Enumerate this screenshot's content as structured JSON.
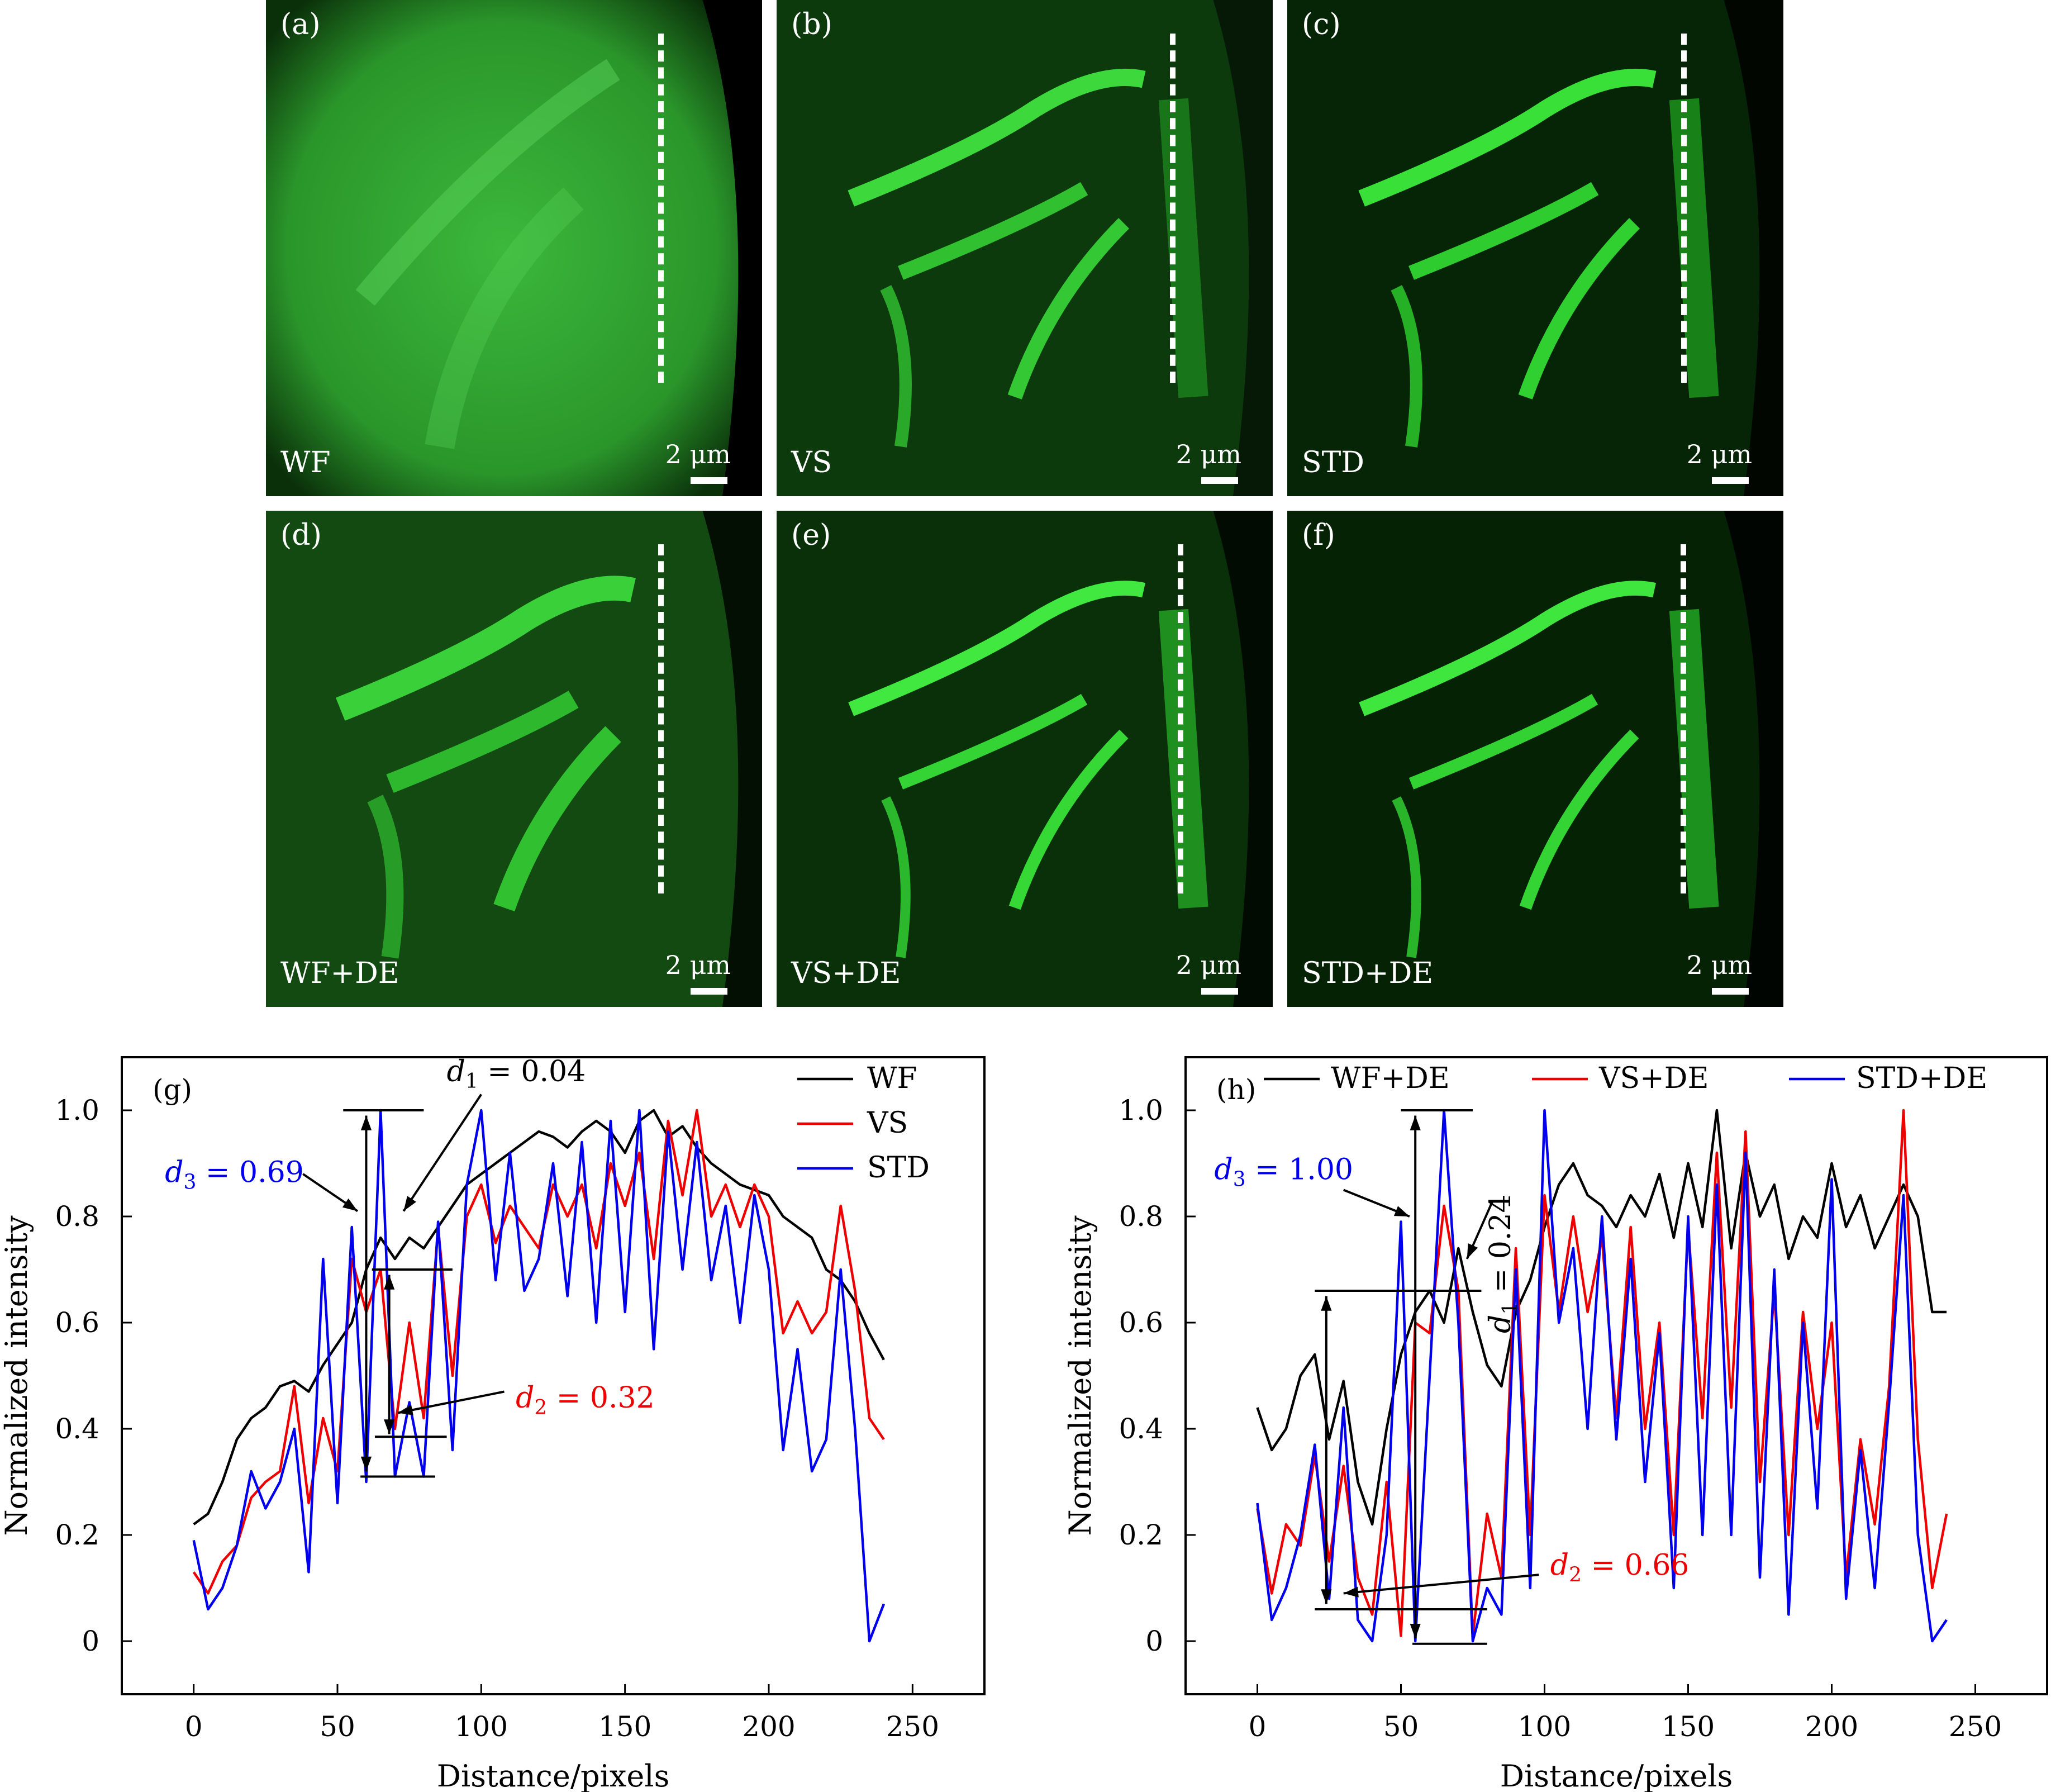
{
  "panels": [
    {
      "letter": "(a)",
      "method": "WF",
      "scale": "2 μm"
    },
    {
      "letter": "(b)",
      "method": "VS",
      "scale": "2 μm"
    },
    {
      "letter": "(c)",
      "method": "STD",
      "scale": "2 μm"
    },
    {
      "letter": "(d)",
      "method": "WF+DE",
      "scale": "2 μm"
    },
    {
      "letter": "(e)",
      "method": "VS+DE",
      "scale": "2 μm"
    },
    {
      "letter": "(f)",
      "method": "STD+DE",
      "scale": "2 μm"
    }
  ],
  "colors": {
    "wf": "#000000",
    "vs": "#ee0000",
    "std": "#0000ee",
    "green": "#22d022"
  },
  "chart_data": [
    {
      "type": "line",
      "panel": "(g)",
      "xlabel": "Distance/pixels",
      "ylabel": "Normalized intensity",
      "xlim": [
        -25,
        275
      ],
      "ylim": [
        -0.1,
        1.1
      ],
      "xticks": [
        0,
        50,
        100,
        150,
        200,
        250
      ],
      "yticks": [
        0,
        0.2,
        0.4,
        0.6,
        0.8,
        1.0
      ],
      "ytick_labels": [
        "0",
        "0.2",
        "0.4",
        "0.6",
        "0.8",
        "1.0"
      ],
      "legend_position": "top-right",
      "series": [
        {
          "name": "WF",
          "color": "#000000",
          "x": [
            0,
            5,
            10,
            15,
            20,
            25,
            30,
            35,
            40,
            45,
            50,
            55,
            60,
            65,
            70,
            75,
            80,
            85,
            90,
            95,
            100,
            105,
            110,
            115,
            120,
            125,
            130,
            135,
            140,
            145,
            150,
            155,
            160,
            165,
            170,
            175,
            180,
            185,
            190,
            195,
            200,
            205,
            210,
            215,
            220,
            225,
            230,
            235,
            240
          ],
          "y": [
            0.22,
            0.24,
            0.3,
            0.38,
            0.42,
            0.44,
            0.48,
            0.49,
            0.47,
            0.52,
            0.56,
            0.6,
            0.7,
            0.76,
            0.72,
            0.76,
            0.74,
            0.78,
            0.82,
            0.86,
            0.88,
            0.9,
            0.92,
            0.94,
            0.96,
            0.95,
            0.93,
            0.96,
            0.98,
            0.96,
            0.92,
            0.98,
            1.0,
            0.95,
            0.97,
            0.93,
            0.9,
            0.88,
            0.86,
            0.85,
            0.84,
            0.8,
            0.78,
            0.76,
            0.7,
            0.68,
            0.64,
            0.58,
            0.53
          ]
        },
        {
          "name": "VS",
          "color": "#ee0000",
          "x": [
            0,
            5,
            10,
            15,
            20,
            25,
            30,
            35,
            40,
            45,
            50,
            55,
            60,
            65,
            70,
            75,
            80,
            85,
            90,
            95,
            100,
            105,
            110,
            115,
            120,
            125,
            130,
            135,
            140,
            145,
            150,
            155,
            160,
            165,
            170,
            175,
            180,
            185,
            190,
            195,
            200,
            205,
            210,
            215,
            220,
            225,
            230,
            235,
            240
          ],
          "y": [
            0.13,
            0.09,
            0.15,
            0.18,
            0.27,
            0.3,
            0.32,
            0.48,
            0.26,
            0.42,
            0.32,
            0.72,
            0.62,
            0.7,
            0.4,
            0.6,
            0.42,
            0.78,
            0.5,
            0.8,
            0.86,
            0.75,
            0.82,
            0.78,
            0.74,
            0.86,
            0.8,
            0.86,
            0.74,
            0.9,
            0.82,
            0.92,
            0.72,
            0.98,
            0.84,
            1.0,
            0.8,
            0.86,
            0.78,
            0.86,
            0.8,
            0.58,
            0.64,
            0.58,
            0.62,
            0.82,
            0.66,
            0.42,
            0.38
          ]
        },
        {
          "name": "STD",
          "color": "#0000ee",
          "x": [
            0,
            5,
            10,
            15,
            20,
            25,
            30,
            35,
            40,
            45,
            50,
            55,
            60,
            65,
            70,
            75,
            80,
            85,
            90,
            95,
            100,
            105,
            110,
            115,
            120,
            125,
            130,
            135,
            140,
            145,
            150,
            155,
            160,
            165,
            170,
            175,
            180,
            185,
            190,
            195,
            200,
            205,
            210,
            215,
            220,
            225,
            230,
            235,
            240
          ],
          "y": [
            0.19,
            0.06,
            0.1,
            0.18,
            0.32,
            0.25,
            0.3,
            0.4,
            0.13,
            0.72,
            0.26,
            0.78,
            0.3,
            1.0,
            0.31,
            0.45,
            0.31,
            0.79,
            0.36,
            0.86,
            1.0,
            0.68,
            0.92,
            0.66,
            0.72,
            0.9,
            0.65,
            0.94,
            0.6,
            0.98,
            0.62,
            1.0,
            0.55,
            0.96,
            0.7,
            0.94,
            0.68,
            0.82,
            0.6,
            0.84,
            0.7,
            0.36,
            0.55,
            0.32,
            0.38,
            0.7,
            0.4,
            0.0,
            0.07
          ]
        }
      ],
      "annotations": [
        {
          "label": "d",
          "sub": "1",
          "value": "= 0.04",
          "color": "#000000"
        },
        {
          "label": "d",
          "sub": "2",
          "value": "= 0.32",
          "color": "#ee0000"
        },
        {
          "label": "d",
          "sub": "3",
          "value": "= 0.69",
          "color": "#0000ee"
        }
      ]
    },
    {
      "type": "line",
      "panel": "(h)",
      "xlabel": "Distance/pixels",
      "ylabel": "Normalized intensity",
      "xlim": [
        -25,
        275
      ],
      "ylim": [
        -0.1,
        1.1
      ],
      "xticks": [
        0,
        50,
        100,
        150,
        200,
        250
      ],
      "yticks": [
        0,
        0.2,
        0.4,
        0.6,
        0.8,
        1.0
      ],
      "ytick_labels": [
        "0",
        "0.2",
        "0.4",
        "0.6",
        "0.8",
        "1.0"
      ],
      "legend_position": "top",
      "series": [
        {
          "name": "WF+DE",
          "color": "#000000",
          "x": [
            0,
            5,
            10,
            15,
            20,
            25,
            30,
            35,
            40,
            45,
            50,
            55,
            60,
            65,
            70,
            75,
            80,
            85,
            90,
            95,
            100,
            105,
            110,
            115,
            120,
            125,
            130,
            135,
            140,
            145,
            150,
            155,
            160,
            165,
            170,
            175,
            180,
            185,
            190,
            195,
            200,
            205,
            210,
            215,
            220,
            225,
            230,
            235,
            240
          ],
          "y": [
            0.44,
            0.36,
            0.4,
            0.5,
            0.54,
            0.38,
            0.49,
            0.3,
            0.22,
            0.4,
            0.54,
            0.62,
            0.66,
            0.6,
            0.74,
            0.62,
            0.52,
            0.48,
            0.62,
            0.68,
            0.78,
            0.86,
            0.9,
            0.84,
            0.82,
            0.78,
            0.84,
            0.8,
            0.88,
            0.76,
            0.9,
            0.78,
            1.0,
            0.74,
            0.92,
            0.8,
            0.86,
            0.72,
            0.8,
            0.76,
            0.9,
            0.78,
            0.84,
            0.74,
            0.8,
            0.86,
            0.8,
            0.62,
            0.62
          ]
        },
        {
          "name": "VS+DE",
          "color": "#ee0000",
          "x": [
            0,
            5,
            10,
            15,
            20,
            25,
            30,
            35,
            40,
            45,
            50,
            55,
            60,
            65,
            70,
            75,
            80,
            85,
            90,
            95,
            100,
            105,
            110,
            115,
            120,
            125,
            130,
            135,
            140,
            145,
            150,
            155,
            160,
            165,
            170,
            175,
            180,
            185,
            190,
            195,
            200,
            205,
            210,
            215,
            220,
            225,
            230,
            235,
            240
          ],
          "y": [
            0.25,
            0.09,
            0.22,
            0.18,
            0.35,
            0.15,
            0.33,
            0.12,
            0.05,
            0.3,
            0.01,
            0.6,
            0.58,
            0.82,
            0.66,
            0.01,
            0.24,
            0.12,
            0.74,
            0.2,
            0.84,
            0.62,
            0.8,
            0.62,
            0.76,
            0.42,
            0.78,
            0.4,
            0.6,
            0.2,
            0.78,
            0.42,
            0.92,
            0.44,
            0.96,
            0.3,
            0.66,
            0.2,
            0.62,
            0.4,
            0.6,
            0.12,
            0.38,
            0.22,
            0.48,
            1.0,
            0.38,
            0.1,
            0.24
          ]
        },
        {
          "name": "STD+DE",
          "color": "#0000ee",
          "x": [
            0,
            5,
            10,
            15,
            20,
            25,
            30,
            35,
            40,
            45,
            50,
            55,
            60,
            65,
            70,
            75,
            80,
            85,
            90,
            95,
            100,
            105,
            110,
            115,
            120,
            125,
            130,
            135,
            140,
            145,
            150,
            155,
            160,
            165,
            170,
            175,
            180,
            185,
            190,
            195,
            200,
            205,
            210,
            215,
            220,
            225,
            230,
            235,
            240
          ],
          "y": [
            0.26,
            0.04,
            0.1,
            0.2,
            0.37,
            0.08,
            0.44,
            0.04,
            0.0,
            0.2,
            0.79,
            0.0,
            0.5,
            1.0,
            0.6,
            0.0,
            0.1,
            0.05,
            0.7,
            0.1,
            1.0,
            0.6,
            0.74,
            0.4,
            0.8,
            0.38,
            0.72,
            0.3,
            0.58,
            0.1,
            0.8,
            0.2,
            0.86,
            0.2,
            0.92,
            0.12,
            0.7,
            0.05,
            0.6,
            0.25,
            0.87,
            0.08,
            0.36,
            0.1,
            0.45,
            0.84,
            0.2,
            0.0,
            0.04
          ]
        }
      ],
      "annotations": [
        {
          "label": "d",
          "sub": "1",
          "value": "= 0.24",
          "color": "#000000"
        },
        {
          "label": "d",
          "sub": "2",
          "value": "= 0.66",
          "color": "#ee0000"
        },
        {
          "label": "d",
          "sub": "3",
          "value": "= 1.00",
          "color": "#0000ee"
        }
      ]
    }
  ]
}
